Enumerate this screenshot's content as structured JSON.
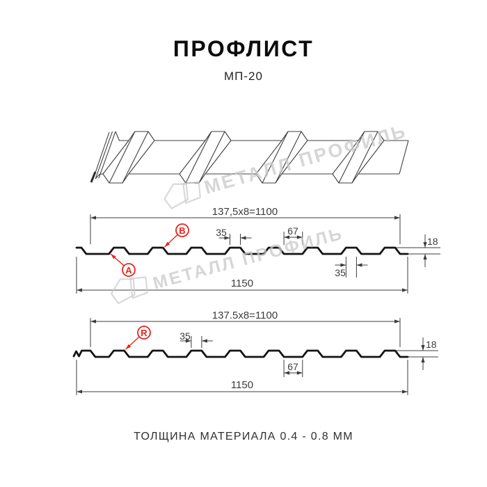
{
  "header": {
    "title": "ПРОФЛИСТ",
    "subtitle": "МП-20"
  },
  "footer": {
    "text": "ТОЛЩИНА МАТЕРИАЛА 0.4 - 0.8 ММ"
  },
  "watermark": {
    "text": "МЕТАЛЛ ПРОФИЛЬ"
  },
  "colors": {
    "accent_red": "#e8241c",
    "drawing_line": "#141414",
    "dimension_line": "#3c3c3c",
    "watermark_gray": "#c9c9c9"
  },
  "sections": {
    "ab": {
      "dim_top": "137,5x8=1100",
      "dim_rib_width": "35",
      "dim_valley_width": "67",
      "dim_rib_width_2": "35",
      "dim_height": "18",
      "dim_total": "1150",
      "label_a": "A",
      "label_b": "B"
    },
    "r": {
      "dim_top": "137.5x8=1100",
      "dim_rib_width": "35",
      "dim_valley_width": "67",
      "dim_height": "18",
      "dim_total": "1150",
      "label_r": "R"
    }
  }
}
